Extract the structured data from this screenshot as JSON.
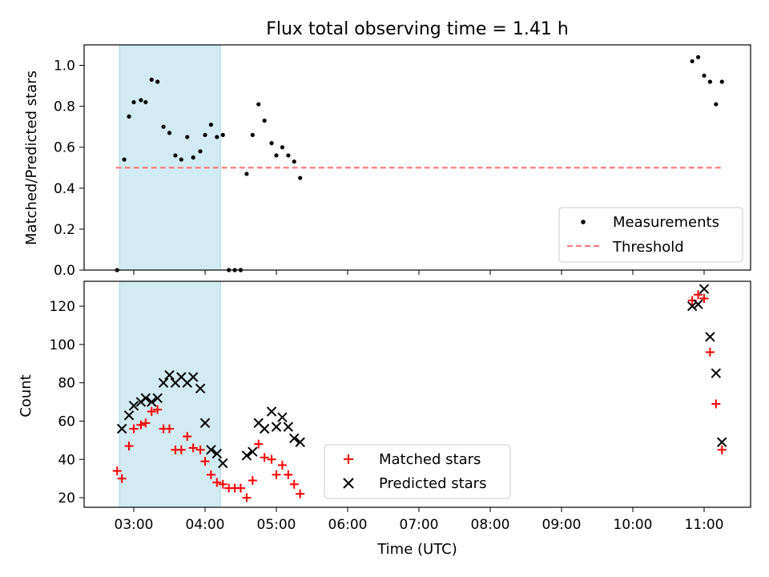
{
  "title": "Flux total observing time = 1.41 h",
  "xlabel": "Time (UTC)",
  "x_ticks": [
    "03:00",
    "04:00",
    "05:00",
    "06:00",
    "07:00",
    "08:00",
    "09:00",
    "10:00",
    "11:00"
  ],
  "shade_span": [
    "02:48",
    "04:13"
  ],
  "colors": {
    "shade": "#add8e6",
    "threshold": "#ff7f7f",
    "matched": "#ff0000",
    "predicted": "#000000",
    "measurement": "#000000"
  },
  "chart_data": [
    {
      "type": "scatter",
      "ylabel": "Matched/Predicted stars",
      "ylim": [
        0,
        1.1
      ],
      "y_ticks": [
        "0.0",
        "0.2",
        "0.4",
        "0.6",
        "0.8",
        "1.0"
      ],
      "legend": {
        "placement": "lower-right",
        "entries": [
          "Measurements",
          "Threshold"
        ]
      },
      "threshold": {
        "name": "Threshold",
        "y": 0.5,
        "x_range": [
          "02:45",
          "11:15"
        ]
      },
      "series": [
        {
          "name": "Measurements",
          "marker": "dot",
          "points": [
            [
              "02:46",
              0.0
            ],
            [
              "02:52",
              0.54
            ],
            [
              "02:56",
              0.75
            ],
            [
              "03:00",
              0.82
            ],
            [
              "03:06",
              0.83
            ],
            [
              "03:10",
              0.82
            ],
            [
              "03:15",
              0.93
            ],
            [
              "03:20",
              0.92
            ],
            [
              "03:25",
              0.7
            ],
            [
              "03:30",
              0.67
            ],
            [
              "03:35",
              0.56
            ],
            [
              "03:40",
              0.54
            ],
            [
              "03:45",
              0.65
            ],
            [
              "03:50",
              0.55
            ],
            [
              "03:56",
              0.58
            ],
            [
              "04:00",
              0.66
            ],
            [
              "04:05",
              0.71
            ],
            [
              "04:10",
              0.65
            ],
            [
              "04:15",
              0.66
            ],
            [
              "04:20",
              0.0
            ],
            [
              "04:25",
              0.0
            ],
            [
              "04:30",
              0.0
            ],
            [
              "04:35",
              0.47
            ],
            [
              "04:40",
              0.66
            ],
            [
              "04:45",
              0.81
            ],
            [
              "04:50",
              0.73
            ],
            [
              "04:56",
              0.62
            ],
            [
              "05:00",
              0.56
            ],
            [
              "05:05",
              0.6
            ],
            [
              "05:10",
              0.56
            ],
            [
              "05:15",
              0.53
            ],
            [
              "05:20",
              0.45
            ],
            [
              "10:50",
              1.02
            ],
            [
              "10:55",
              1.04
            ],
            [
              "11:00",
              0.95
            ],
            [
              "11:05",
              0.92
            ],
            [
              "11:10",
              0.81
            ],
            [
              "11:15",
              0.92
            ]
          ]
        }
      ]
    },
    {
      "type": "scatter",
      "ylabel": "Count",
      "ylim": [
        15,
        133
      ],
      "y_ticks": [
        "20",
        "40",
        "60",
        "80",
        "100",
        "120"
      ],
      "legend": {
        "placement": "lower-center",
        "entries": [
          "Matched stars",
          "Predicted stars"
        ]
      },
      "series": [
        {
          "name": "Matched stars",
          "marker": "plus",
          "points": [
            [
              "02:46",
              34
            ],
            [
              "02:50",
              30
            ],
            [
              "02:56",
              47
            ],
            [
              "03:00",
              56
            ],
            [
              "03:06",
              58
            ],
            [
              "03:10",
              59
            ],
            [
              "03:15",
              65
            ],
            [
              "03:20",
              66
            ],
            [
              "03:25",
              56
            ],
            [
              "03:30",
              56
            ],
            [
              "03:35",
              45
            ],
            [
              "03:40",
              45
            ],
            [
              "03:45",
              52
            ],
            [
              "03:50",
              46
            ],
            [
              "03:56",
              45
            ],
            [
              "04:00",
              39
            ],
            [
              "04:05",
              32
            ],
            [
              "04:10",
              28
            ],
            [
              "04:15",
              27
            ],
            [
              "04:20",
              25
            ],
            [
              "04:25",
              25
            ],
            [
              "04:30",
              25
            ],
            [
              "04:35",
              20
            ],
            [
              "04:40",
              29
            ],
            [
              "04:45",
              48
            ],
            [
              "04:50",
              41
            ],
            [
              "04:56",
              40
            ],
            [
              "05:00",
              32
            ],
            [
              "05:05",
              37
            ],
            [
              "05:10",
              32
            ],
            [
              "05:15",
              27
            ],
            [
              "05:20",
              22
            ],
            [
              "10:50",
              123
            ],
            [
              "10:55",
              126
            ],
            [
              "11:00",
              124
            ],
            [
              "11:05",
              96
            ],
            [
              "11:10",
              69
            ],
            [
              "11:15",
              45
            ]
          ]
        },
        {
          "name": "Predicted stars",
          "marker": "x",
          "points": [
            [
              "02:50",
              56
            ],
            [
              "02:56",
              63
            ],
            [
              "03:00",
              68
            ],
            [
              "03:06",
              70
            ],
            [
              "03:10",
              72
            ],
            [
              "03:15",
              70
            ],
            [
              "03:20",
              72
            ],
            [
              "03:25",
              80
            ],
            [
              "03:30",
              84
            ],
            [
              "03:35",
              80
            ],
            [
              "03:40",
              83
            ],
            [
              "03:45",
              80
            ],
            [
              "03:50",
              83
            ],
            [
              "03:56",
              77
            ],
            [
              "04:00",
              59
            ],
            [
              "04:05",
              45
            ],
            [
              "04:10",
              43
            ],
            [
              "04:15",
              38
            ],
            [
              "04:35",
              42
            ],
            [
              "04:40",
              44
            ],
            [
              "04:45",
              59
            ],
            [
              "04:50",
              56
            ],
            [
              "04:56",
              65
            ],
            [
              "05:00",
              57
            ],
            [
              "05:05",
              62
            ],
            [
              "05:10",
              57
            ],
            [
              "05:15",
              51
            ],
            [
              "05:20",
              49
            ],
            [
              "10:50",
              120
            ],
            [
              "10:55",
              121
            ],
            [
              "11:00",
              129
            ],
            [
              "11:05",
              104
            ],
            [
              "11:10",
              85
            ],
            [
              "11:15",
              49
            ]
          ]
        }
      ]
    }
  ]
}
